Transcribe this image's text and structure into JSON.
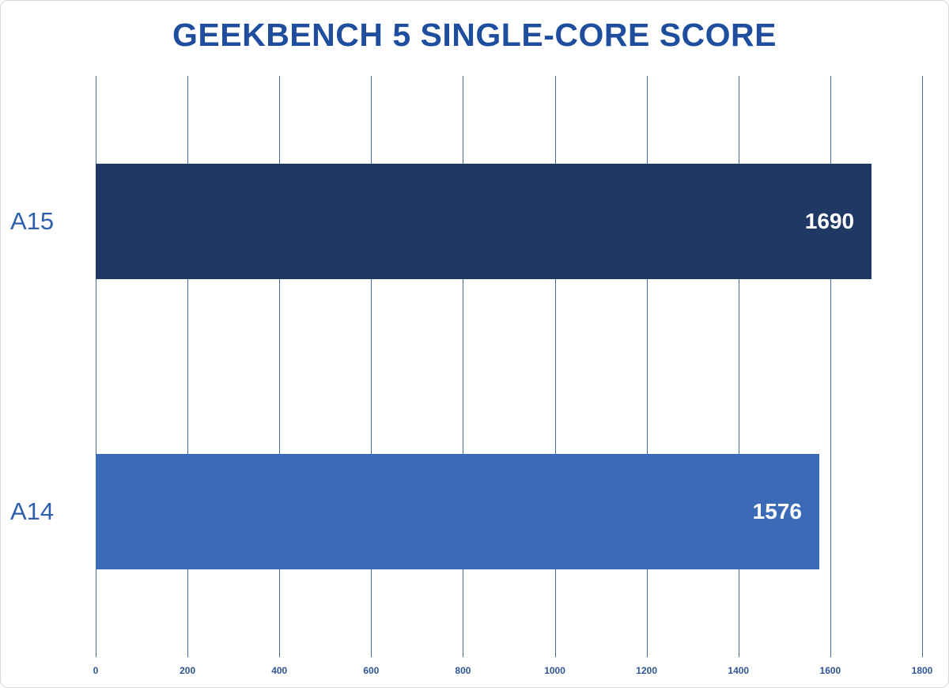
{
  "chart_data": {
    "type": "bar",
    "orientation": "horizontal",
    "title": "GEEKBENCH 5 SINGLE-CORE SCORE",
    "categories": [
      "A15",
      "A14"
    ],
    "values": [
      1690,
      1576
    ],
    "value_labels": [
      "1690",
      "1576"
    ],
    "xlabel": "",
    "ylabel": "",
    "xlim": [
      0,
      1800
    ],
    "x_ticks": [
      0,
      200,
      400,
      600,
      800,
      1000,
      1200,
      1400,
      1600,
      1800
    ],
    "grid": true,
    "legend": false,
    "bar_colors": [
      "#203864",
      "#3b6bb7"
    ],
    "colors": {
      "title": "#1f4e9e",
      "category_label": "#2e5fac",
      "tick_label": "#2f5597",
      "gridline": "#44699e",
      "value_label": "#ffffff",
      "background": "#ffffff",
      "border": "#d9d9d9"
    }
  }
}
